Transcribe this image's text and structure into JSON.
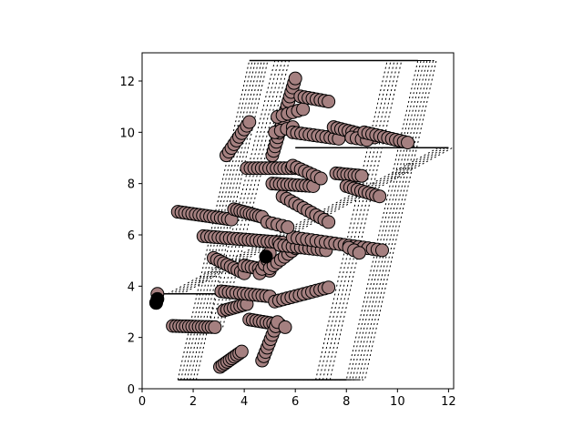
{
  "chart_data": {
    "type": "scatter",
    "title": "",
    "xlabel": "",
    "ylabel": "",
    "xlim": [
      0,
      12.2
    ],
    "ylim": [
      0,
      13.1
    ],
    "xticks": [
      0,
      2,
      4,
      6,
      8,
      10,
      12
    ],
    "yticks": [
      0,
      2,
      4,
      6,
      8,
      10,
      12
    ],
    "grid": false,
    "legend": "none",
    "colors": {
      "marker_fill": "#a58080",
      "marker_edge": "#000000",
      "highlight_fill": "#000000",
      "lattice": "#000000"
    },
    "cell_outline": [
      [
        1.4,
        0.35
      ],
      [
        4.2,
        12.8
      ],
      [
        10.8,
        12.8
      ],
      [
        8.0,
        0.35
      ]
    ],
    "chains": [
      {
        "start": [
          3.05,
          0.85
        ],
        "end": [
          3.9,
          1.45
        ],
        "n": 10
      },
      {
        "start": [
          0.55,
          3.35
        ],
        "end": [
          0.55,
          3.35
        ],
        "n": 1
      },
      {
        "start": [
          0.6,
          3.7
        ],
        "end": [
          0.6,
          3.7
        ],
        "n": 1
      },
      {
        "start": [
          1.2,
          2.45
        ],
        "end": [
          2.85,
          2.4
        ],
        "n": 14
      },
      {
        "start": [
          3.2,
          3.05
        ],
        "end": [
          4.1,
          3.3
        ],
        "n": 8
      },
      {
        "start": [
          4.2,
          2.7
        ],
        "end": [
          5.4,
          2.5
        ],
        "n": 10
      },
      {
        "start": [
          4.7,
          1.1
        ],
        "end": [
          5.3,
          2.6
        ],
        "n": 10
      },
      {
        "start": [
          5.6,
          2.4
        ],
        "end": [
          5.6,
          2.4
        ],
        "n": 1
      },
      {
        "start": [
          3.1,
          3.8
        ],
        "end": [
          5.0,
          3.6
        ],
        "n": 14
      },
      {
        "start": [
          5.2,
          3.4
        ],
        "end": [
          7.3,
          3.95
        ],
        "n": 14
      },
      {
        "start": [
          2.8,
          5.1
        ],
        "end": [
          4.0,
          4.5
        ],
        "n": 10
      },
      {
        "start": [
          4.0,
          4.8
        ],
        "end": [
          5.0,
          4.6
        ],
        "n": 8
      },
      {
        "start": [
          4.6,
          4.5
        ],
        "end": [
          5.0,
          5.2
        ],
        "n": 5
      },
      {
        "start": [
          5.0,
          4.7
        ],
        "end": [
          6.3,
          5.7
        ],
        "n": 10
      },
      {
        "start": [
          5.0,
          5.3
        ],
        "end": [
          5.0,
          5.3
        ],
        "n": 1
      },
      {
        "start": [
          2.4,
          5.95
        ],
        "end": [
          5.5,
          5.7
        ],
        "n": 22
      },
      {
        "start": [
          5.4,
          5.6
        ],
        "end": [
          7.2,
          5.4
        ],
        "n": 12
      },
      {
        "start": [
          5.9,
          5.9
        ],
        "end": [
          9.4,
          5.4
        ],
        "n": 20
      },
      {
        "start": [
          8.1,
          5.5
        ],
        "end": [
          8.5,
          5.3
        ],
        "n": 3
      },
      {
        "start": [
          1.4,
          6.9
        ],
        "end": [
          3.5,
          6.6
        ],
        "n": 16
      },
      {
        "start": [
          3.6,
          7.0
        ],
        "end": [
          4.7,
          6.7
        ],
        "n": 10
      },
      {
        "start": [
          4.9,
          6.5
        ],
        "end": [
          5.7,
          6.3
        ],
        "n": 5
      },
      {
        "start": [
          5.5,
          7.5
        ],
        "end": [
          7.3,
          6.5
        ],
        "n": 12
      },
      {
        "start": [
          5.1,
          8.0
        ],
        "end": [
          6.7,
          7.9
        ],
        "n": 12
      },
      {
        "start": [
          4.1,
          8.6
        ],
        "end": [
          6.0,
          8.6
        ],
        "n": 14
      },
      {
        "start": [
          5.9,
          8.7
        ],
        "end": [
          7.0,
          8.2
        ],
        "n": 8
      },
      {
        "start": [
          7.6,
          8.4
        ],
        "end": [
          8.6,
          8.3
        ],
        "n": 8
      },
      {
        "start": [
          8.0,
          7.9
        ],
        "end": [
          9.3,
          7.5
        ],
        "n": 10
      },
      {
        "start": [
          3.3,
          9.1
        ],
        "end": [
          4.2,
          10.4
        ],
        "n": 10
      },
      {
        "start": [
          5.1,
          9.1
        ],
        "end": [
          6.0,
          12.1
        ],
        "n": 18
      },
      {
        "start": [
          5.3,
          10.6
        ],
        "end": [
          6.3,
          10.9
        ],
        "n": 6
      },
      {
        "start": [
          5.2,
          10.0
        ],
        "end": [
          5.9,
          10.2
        ],
        "n": 4
      },
      {
        "start": [
          5.9,
          10.0
        ],
        "end": [
          7.7,
          9.75
        ],
        "n": 12
      },
      {
        "start": [
          6.2,
          11.4
        ],
        "end": [
          7.3,
          11.2
        ],
        "n": 8
      },
      {
        "start": [
          7.5,
          10.2
        ],
        "end": [
          9.1,
          9.8
        ],
        "n": 12
      },
      {
        "start": [
          8.2,
          9.8
        ],
        "end": [
          8.8,
          9.7
        ],
        "n": 4
      },
      {
        "start": [
          8.7,
          10.0
        ],
        "end": [
          10.4,
          9.6
        ],
        "n": 12
      }
    ],
    "highlight_points": [
      [
        0.55,
        3.35
      ],
      [
        0.6,
        3.5
      ],
      [
        4.85,
        5.15
      ]
    ]
  }
}
